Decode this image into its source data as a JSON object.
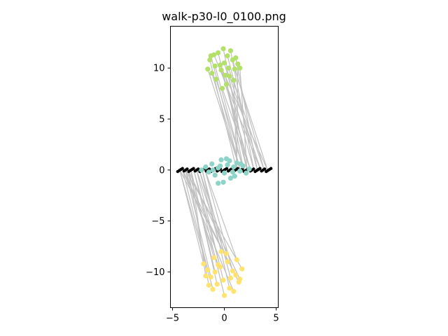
{
  "chart_data": {
    "type": "scatter",
    "title": "walk-p30-l0_0100.png",
    "xlabel": "",
    "ylabel": "",
    "xlim": [
      -5.2,
      5.2
    ],
    "ylim": [
      -13.5,
      14.1
    ],
    "x_ticks": [
      -5,
      0,
      5
    ],
    "x_tick_labels": [
      "−5",
      "0",
      "5"
    ],
    "y_ticks": [
      10,
      5,
      0,
      -5,
      -10
    ],
    "y_tick_labels": [
      "10",
      "5",
      "0",
      "−5",
      "−10"
    ],
    "grid": false,
    "legend": "none",
    "colors": {
      "top_cluster": "#b3e06a",
      "middle_cluster": "#8dd3c7",
      "bottom_cluster": "#ffe36e",
      "baseline": "#000000",
      "links": "#c0c0c0"
    },
    "series": [
      {
        "id": "top_cluster",
        "points": [
          [
            -1.4,
            10.8
          ],
          [
            -1.2,
            9.5
          ],
          [
            -0.9,
            10.2
          ],
          [
            -0.6,
            11.5
          ],
          [
            -0.3,
            9.8
          ],
          [
            0.0,
            10.5
          ],
          [
            0.3,
            11.2
          ],
          [
            0.5,
            9.2
          ],
          [
            0.8,
            10.8
          ],
          [
            1.0,
            9.9
          ],
          [
            1.3,
            10.4
          ],
          [
            -1.6,
            9.9
          ],
          [
            -0.8,
            8.9
          ],
          [
            -0.1,
            11.9
          ],
          [
            0.2,
            8.4
          ],
          [
            0.6,
            11.7
          ],
          [
            1.1,
            11.0
          ],
          [
            -1.0,
            11.3
          ],
          [
            0.4,
            10.0
          ],
          [
            -0.4,
            10.3
          ],
          [
            0.9,
            8.8
          ],
          [
            -1.3,
            11.2
          ],
          [
            0.1,
            9.3
          ],
          [
            1.5,
            10.0
          ],
          [
            -0.2,
            8.0
          ]
        ]
      },
      {
        "id": "middle_cluster",
        "points": [
          [
            -2.2,
            0.0
          ],
          [
            -1.8,
            0.3
          ],
          [
            -1.5,
            -0.2
          ],
          [
            -1.2,
            0.6
          ],
          [
            -0.9,
            -0.5
          ],
          [
            -0.6,
            0.2
          ],
          [
            -0.3,
            1.0
          ],
          [
            0.0,
            -0.3
          ],
          [
            0.3,
            0.5
          ],
          [
            0.6,
            -0.8
          ],
          [
            0.9,
            0.3
          ],
          [
            1.2,
            0.7
          ],
          [
            1.5,
            -0.1
          ],
          [
            1.8,
            0.4
          ],
          [
            2.1,
            -0.3
          ],
          [
            -0.1,
            -1.2
          ],
          [
            0.2,
            1.1
          ],
          [
            -0.6,
            -1.3
          ],
          [
            0.5,
            0.9
          ],
          [
            1.0,
            -0.6
          ],
          [
            -1.1,
            0.0
          ],
          [
            2.4,
            0.1
          ],
          [
            -0.4,
            0.4
          ],
          [
            0.8,
            -0.2
          ],
          [
            1.6,
            0.6
          ]
        ]
      },
      {
        "id": "bottom_cluster",
        "points": [
          [
            -2.0,
            -9.2
          ],
          [
            -1.6,
            -9.8
          ],
          [
            -1.3,
            -10.5
          ],
          [
            -1.0,
            -8.6
          ],
          [
            -0.7,
            -11.2
          ],
          [
            -0.4,
            -9.5
          ],
          [
            -0.1,
            -10.8
          ],
          [
            0.2,
            -8.2
          ],
          [
            0.5,
            -11.6
          ],
          [
            0.8,
            -9.9
          ],
          [
            1.1,
            -10.3
          ],
          [
            1.4,
            -11.0
          ],
          [
            1.7,
            -9.7
          ],
          [
            -1.5,
            -11.3
          ],
          [
            -0.9,
            -10.0
          ],
          [
            0.0,
            -12.3
          ],
          [
            0.3,
            -9.0
          ],
          [
            -0.3,
            -8.0
          ],
          [
            0.6,
            -10.6
          ],
          [
            1.2,
            -8.8
          ],
          [
            -1.1,
            -11.7
          ],
          [
            0.9,
            -11.9
          ],
          [
            -0.6,
            -9.3
          ],
          [
            1.5,
            -10.7
          ],
          [
            -1.8,
            -10.4
          ]
        ]
      }
    ],
    "baseline_x_range": [
      -4.5,
      4.5
    ]
  }
}
